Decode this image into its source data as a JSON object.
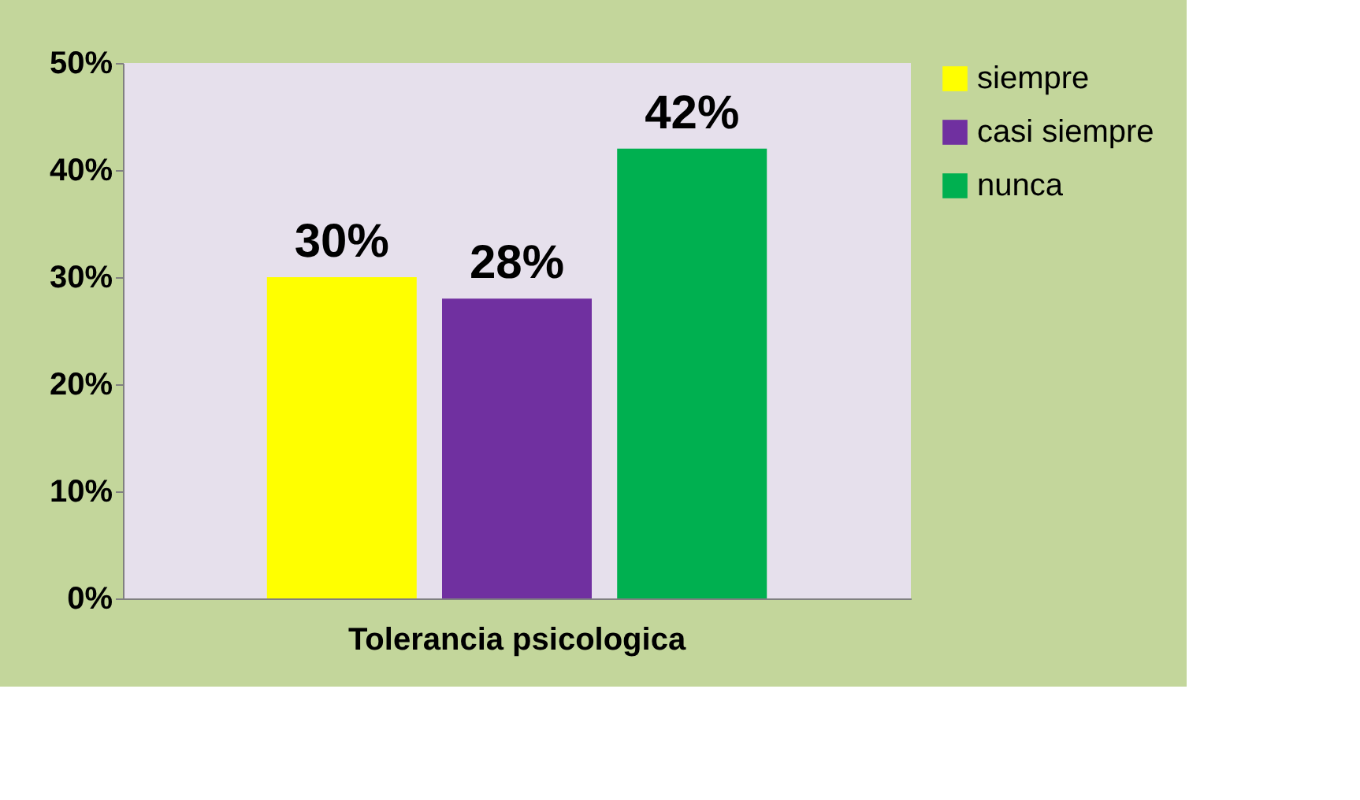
{
  "chart_data": {
    "type": "bar",
    "categories": [
      "Tolerancia psicologica"
    ],
    "series": [
      {
        "name": "siempre",
        "color": "#ffff00",
        "values": [
          30
        ],
        "value_labels": [
          "30%"
        ]
      },
      {
        "name": "casi siempre",
        "color": "#7030a0",
        "values": [
          28
        ],
        "value_labels": [
          "28%"
        ]
      },
      {
        "name": "nunca",
        "color": "#00b050",
        "values": [
          42
        ],
        "value_labels": [
          "42%"
        ]
      }
    ],
    "ylim": [
      0,
      50
    ],
    "yticks": [
      {
        "value": 0,
        "label": "0%"
      },
      {
        "value": 10,
        "label": "10%"
      },
      {
        "value": 20,
        "label": "20%"
      },
      {
        "value": 30,
        "label": "30%"
      },
      {
        "value": 40,
        "label": "40%"
      },
      {
        "value": 50,
        "label": "50%"
      }
    ],
    "grid": false,
    "legend": "right"
  }
}
